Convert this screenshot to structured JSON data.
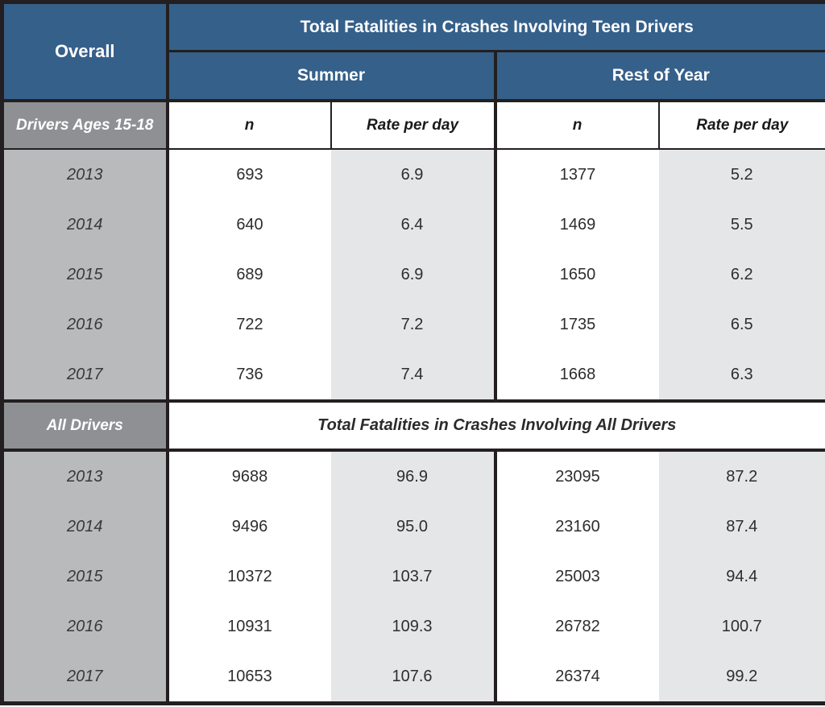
{
  "colors": {
    "header_blue": "#35608a",
    "border_black": "#231f20",
    "section_gray": "#8e9094",
    "year_gray": "#b9babc",
    "rate_stripe_gray": "#e5e6e7",
    "text_dark": "#2e2d2f"
  },
  "table": {
    "overall_label": "Overall",
    "teen": {
      "title": "Total Fatalities in Crashes Involving Teen Drivers",
      "groups": [
        "Summer",
        "Rest of Year"
      ],
      "row_header": "Drivers Ages 15-18",
      "col_headers": [
        "n",
        "Rate per day",
        "n",
        "Rate per day"
      ],
      "rows": [
        [
          "2013",
          "693",
          "6.9",
          "1377",
          "5.2"
        ],
        [
          "2014",
          "640",
          "6.4",
          "1469",
          "5.5"
        ],
        [
          "2015",
          "689",
          "6.9",
          "1650",
          "6.2"
        ],
        [
          "2016",
          "722",
          "7.2",
          "1735",
          "6.5"
        ],
        [
          "2017",
          "736",
          "7.4",
          "1668",
          "6.3"
        ]
      ]
    },
    "all": {
      "row_header": "All Drivers",
      "title": "Total Fatalities in Crashes Involving All Drivers",
      "rows": [
        [
          "2013",
          "9688",
          "96.9",
          "23095",
          "87.2"
        ],
        [
          "2014",
          "9496",
          "95.0",
          "23160",
          "87.4"
        ],
        [
          "2015",
          "10372",
          "103.7",
          "25003",
          "94.4"
        ],
        [
          "2016",
          "10931",
          "109.3",
          "26782",
          "100.7"
        ],
        [
          "2017",
          "10653",
          "107.6",
          "26374",
          "99.2"
        ]
      ]
    }
  }
}
